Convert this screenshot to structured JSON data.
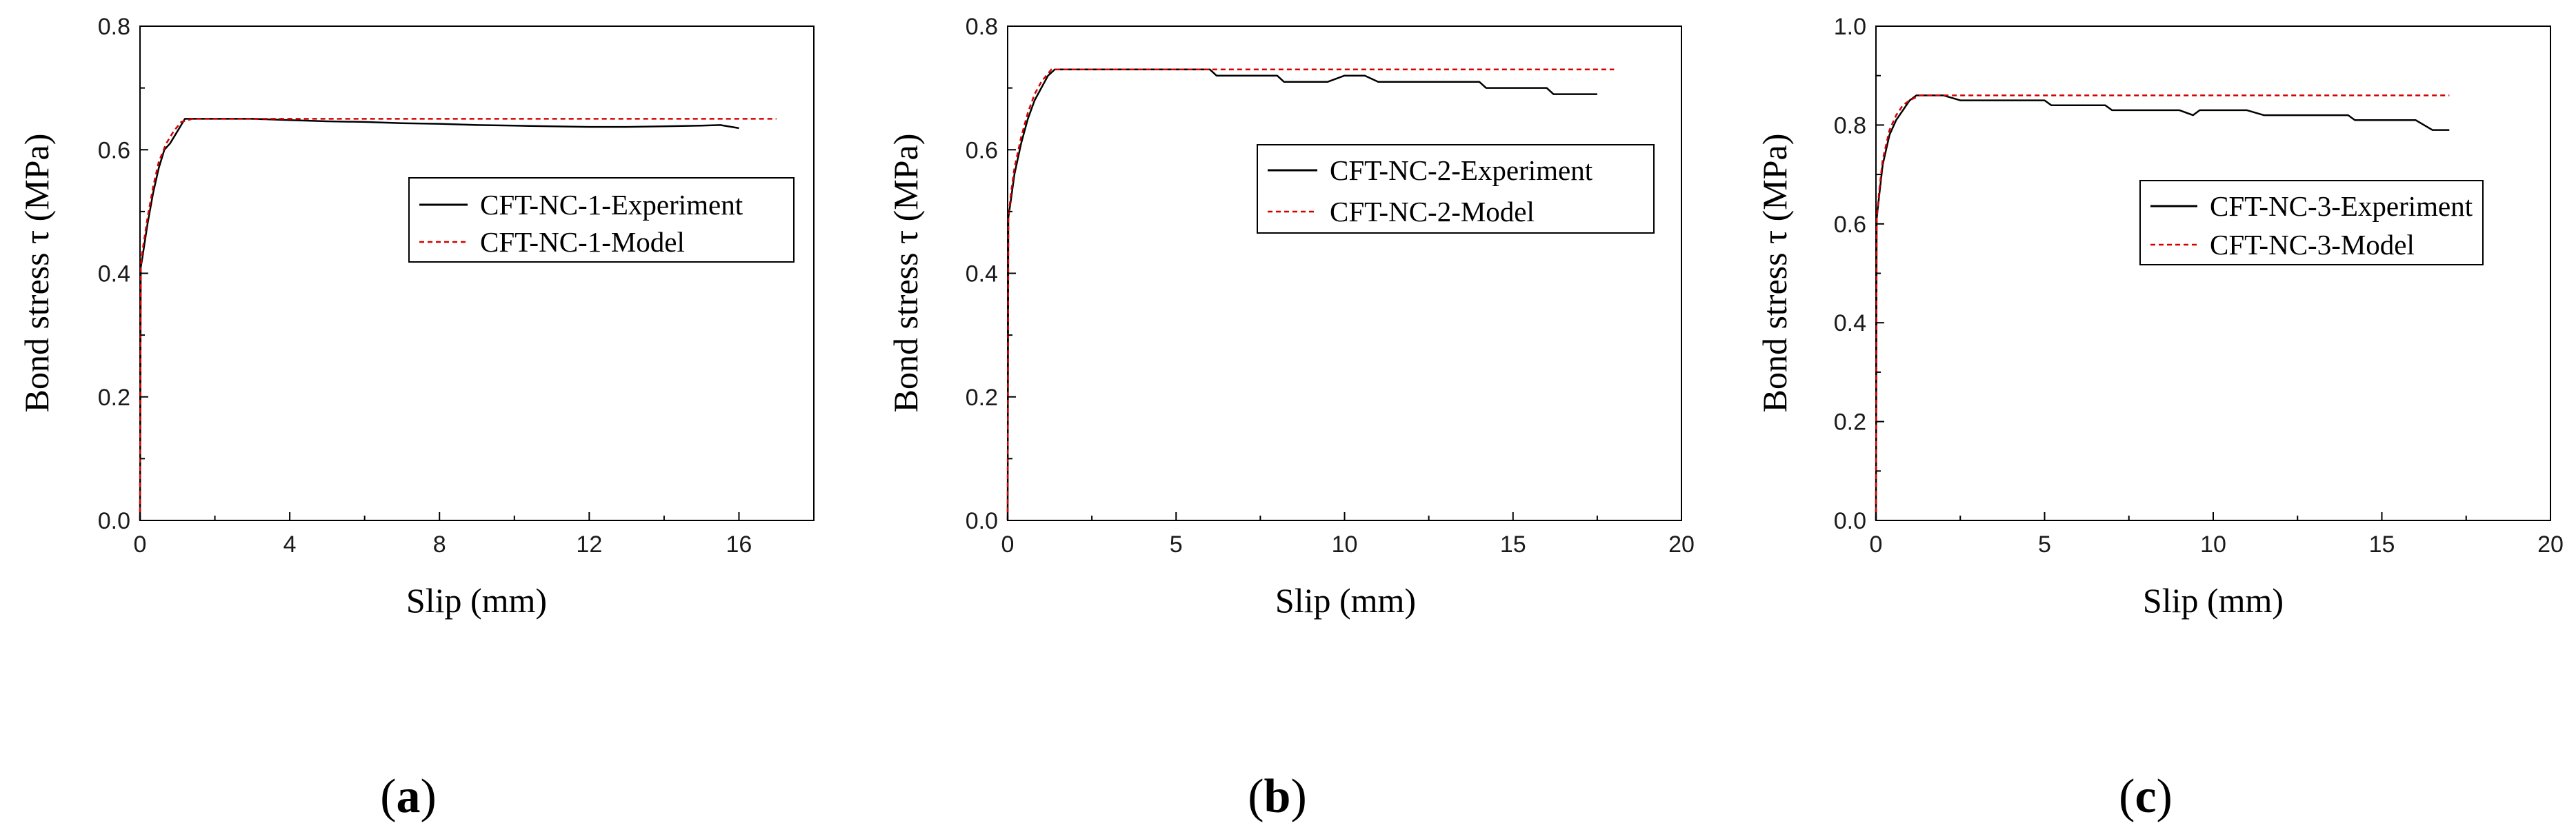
{
  "colors": {
    "experiment": "#000000",
    "model": "#d40000",
    "axis": "#000000"
  },
  "panel_labels": [
    {
      "open": "(",
      "letter": "a",
      "close": ")"
    },
    {
      "open": "(",
      "letter": "b",
      "close": ")"
    },
    {
      "open": "(",
      "letter": "c",
      "close": ")"
    }
  ],
  "chart_data": [
    {
      "type": "line",
      "xlabel": "Slip (mm)",
      "ylabel": "Bond stress τ (MPa)",
      "xlim": [
        0,
        18
      ],
      "ylim": [
        0,
        0.8
      ],
      "xticks": [
        0,
        4,
        8,
        12,
        16
      ],
      "yticks": [
        0.0,
        0.2,
        0.4,
        0.6,
        0.8
      ],
      "ytick_labels": [
        "0.0",
        "0.2",
        "0.4",
        "0.6",
        "0.8"
      ],
      "xtick_labels": [
        "0",
        "4",
        "8",
        "12",
        "16"
      ],
      "legend_position": "center-right",
      "series": [
        {
          "name": "CFT-NC-1-Experiment",
          "style": "solid",
          "x": [
            0,
            0.02,
            0.05,
            0.1,
            0.2,
            0.35,
            0.5,
            0.65,
            0.8,
            1.0,
            1.2,
            1.5,
            2,
            3,
            4,
            5,
            6,
            7,
            8,
            9,
            10,
            11,
            12,
            13,
            14,
            15,
            15.5,
            16
          ],
          "y": [
            0,
            0.41,
            0.42,
            0.44,
            0.48,
            0.53,
            0.57,
            0.6,
            0.61,
            0.63,
            0.65,
            0.65,
            0.65,
            0.65,
            0.648,
            0.646,
            0.645,
            0.643,
            0.642,
            0.64,
            0.639,
            0.638,
            0.637,
            0.637,
            0.638,
            0.639,
            0.64,
            0.635
          ]
        },
        {
          "name": "CFT-NC-1-Model",
          "style": "dashed",
          "x": [
            0,
            0.02,
            0.05,
            0.1,
            0.2,
            0.35,
            0.5,
            0.7,
            0.9,
            1.1,
            1.4,
            2,
            4,
            8,
            12,
            17
          ],
          "y": [
            0,
            0.41,
            0.43,
            0.45,
            0.49,
            0.54,
            0.58,
            0.61,
            0.63,
            0.645,
            0.65,
            0.65,
            0.65,
            0.65,
            0.65,
            0.65
          ]
        }
      ]
    },
    {
      "type": "line",
      "xlabel": "Slip (mm)",
      "ylabel": "Bond stress τ (MPa)",
      "xlim": [
        0,
        20
      ],
      "ylim": [
        0,
        0.8
      ],
      "xticks": [
        0,
        5,
        10,
        15,
        20
      ],
      "yticks": [
        0.0,
        0.2,
        0.4,
        0.6,
        0.8
      ],
      "ytick_labels": [
        "0.0",
        "0.2",
        "0.4",
        "0.6",
        "0.8"
      ],
      "xtick_labels": [
        "0",
        "5",
        "10",
        "15",
        "20"
      ],
      "legend_position": "top-right",
      "series": [
        {
          "name": "CFT-NC-2-Experiment",
          "style": "solid",
          "x": [
            0,
            0.02,
            0.1,
            0.2,
            0.4,
            0.6,
            0.8,
            1.0,
            1.2,
            1.4,
            2,
            3,
            4,
            5,
            6,
            6.2,
            7,
            8,
            8.2,
            9,
            9.5,
            10,
            10.2,
            10.6,
            11,
            12,
            13,
            14,
            14.2,
            15,
            16,
            16.2,
            17,
            17.5
          ],
          "y": [
            0,
            0.49,
            0.52,
            0.56,
            0.61,
            0.65,
            0.68,
            0.7,
            0.72,
            0.73,
            0.73,
            0.73,
            0.73,
            0.73,
            0.73,
            0.72,
            0.72,
            0.72,
            0.71,
            0.71,
            0.71,
            0.72,
            0.72,
            0.72,
            0.71,
            0.71,
            0.71,
            0.71,
            0.7,
            0.7,
            0.7,
            0.69,
            0.69,
            0.69
          ]
        },
        {
          "name": "CFT-NC-2-Model",
          "style": "dashed",
          "x": [
            0,
            0.02,
            0.1,
            0.2,
            0.4,
            0.6,
            0.8,
            1.0,
            1.3,
            2,
            5,
            10,
            15,
            18
          ],
          "y": [
            0,
            0.49,
            0.53,
            0.57,
            0.62,
            0.66,
            0.69,
            0.71,
            0.73,
            0.73,
            0.73,
            0.73,
            0.73,
            0.73
          ]
        }
      ]
    },
    {
      "type": "line",
      "xlabel": "Slip (mm)",
      "ylabel": "Bond stress τ (MPa)",
      "xlim": [
        0,
        20
      ],
      "ylim": [
        0,
        1.0
      ],
      "xticks": [
        0,
        5,
        10,
        15,
        20
      ],
      "yticks": [
        0.0,
        0.2,
        0.4,
        0.6,
        0.8,
        1.0
      ],
      "ytick_labels": [
        "0.0",
        "0.2",
        "0.4",
        "0.6",
        "0.8",
        "1.0"
      ],
      "xtick_labels": [
        "0",
        "5",
        "10",
        "15",
        "20"
      ],
      "legend_position": "center-right",
      "series": [
        {
          "name": "CFT-NC-3-Experiment",
          "style": "solid",
          "x": [
            0,
            0.02,
            0.1,
            0.2,
            0.4,
            0.6,
            0.8,
            1.0,
            1.2,
            1.5,
            2,
            2.5,
            3,
            4,
            5,
            5.2,
            6,
            6.8,
            7,
            8,
            9,
            9.4,
            9.6,
            10,
            11,
            11.5,
            12,
            13,
            14,
            14.2,
            15,
            16,
            16.5,
            17
          ],
          "y": [
            0,
            0.61,
            0.66,
            0.72,
            0.78,
            0.81,
            0.83,
            0.85,
            0.86,
            0.86,
            0.86,
            0.85,
            0.85,
            0.85,
            0.85,
            0.84,
            0.84,
            0.84,
            0.83,
            0.83,
            0.83,
            0.82,
            0.83,
            0.83,
            0.83,
            0.82,
            0.82,
            0.82,
            0.82,
            0.81,
            0.81,
            0.81,
            0.79,
            0.79
          ]
        },
        {
          "name": "CFT-NC-3-Model",
          "style": "dashed",
          "x": [
            0,
            0.02,
            0.1,
            0.2,
            0.4,
            0.6,
            0.8,
            1.0,
            1.3,
            1.6,
            2,
            5,
            10,
            15,
            17
          ],
          "y": [
            0,
            0.61,
            0.67,
            0.73,
            0.79,
            0.82,
            0.84,
            0.85,
            0.86,
            0.86,
            0.86,
            0.86,
            0.86,
            0.86,
            0.86
          ]
        }
      ]
    }
  ]
}
